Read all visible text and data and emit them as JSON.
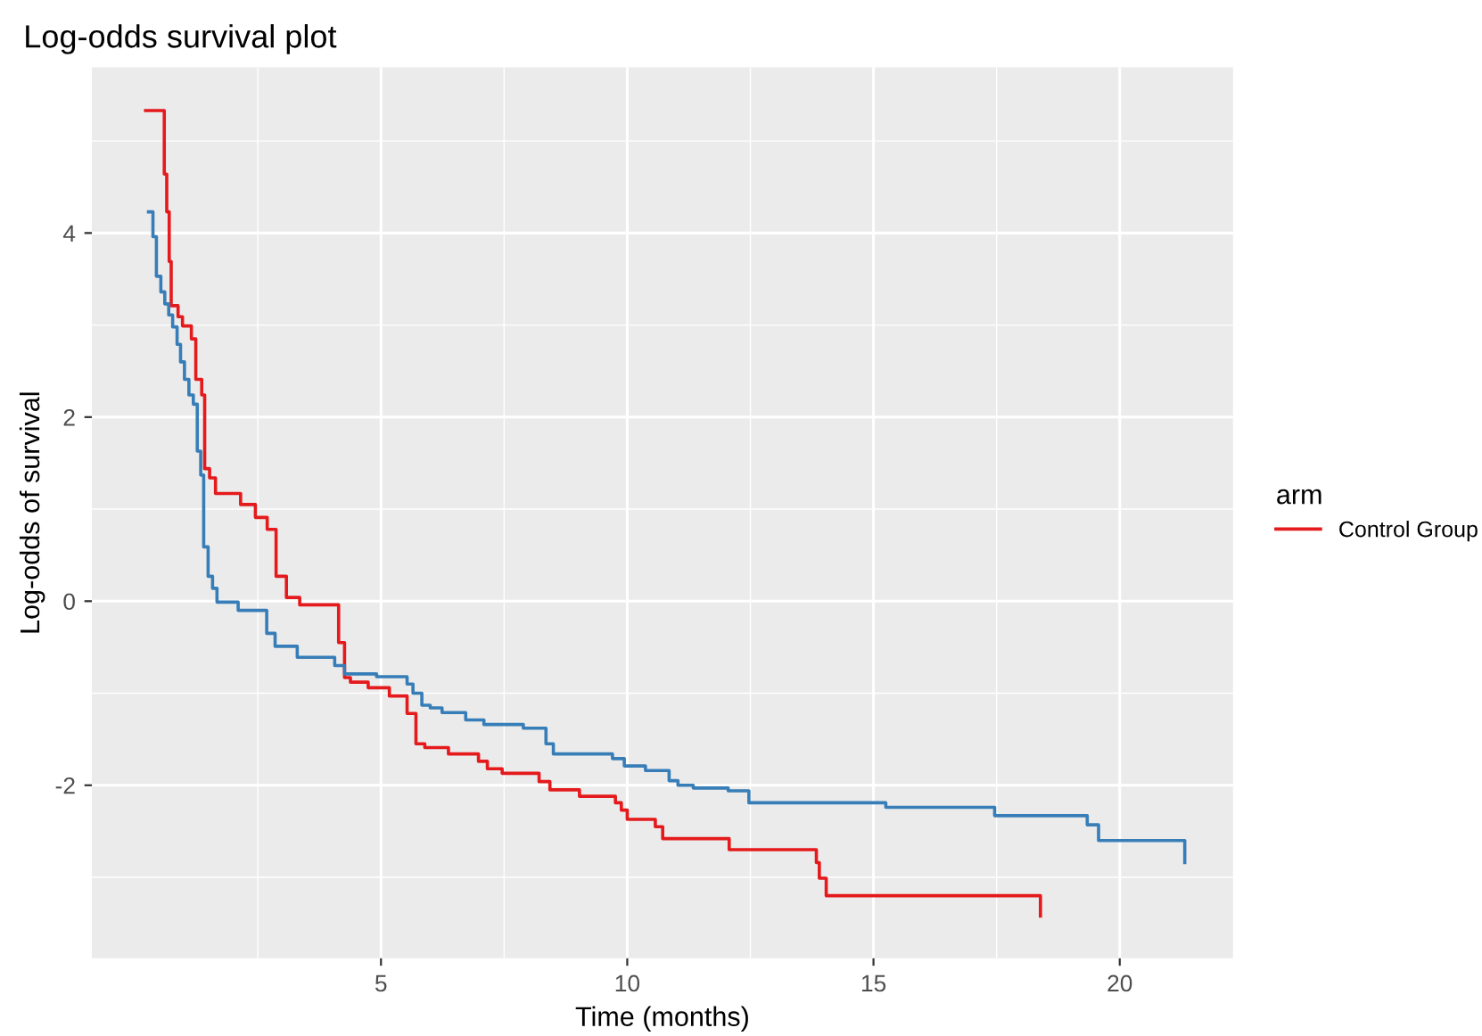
{
  "chart_data": {
    "type": "step",
    "title": "Log-odds survival plot",
    "xlabel": "Time (months)",
    "ylabel": "Log-odds of survival",
    "legend_title": "arm",
    "legend": "right",
    "grid": true,
    "xlim": [
      -0.87,
      22.3
    ],
    "xticks": [
      5,
      10,
      15,
      20
    ],
    "ylim": [
      -3.88,
      5.8
    ],
    "yticks": [
      -2,
      0,
      2,
      4
    ],
    "series": [
      {
        "name": "Control Group",
        "color": "#e41a1c",
        "x": [
          0.22,
          0.6,
          0.65,
          0.7,
          0.74,
          0.88,
          0.97,
          1.15,
          1.24,
          1.36,
          1.42,
          1.52,
          1.64,
          2.15,
          2.45,
          2.69,
          2.87,
          3.08,
          3.35,
          4.14,
          4.26,
          4.38,
          4.74,
          5.17,
          5.53,
          5.71,
          5.89,
          6.37,
          6.98,
          7.16,
          7.46,
          8.21,
          8.43,
          9.03,
          9.76,
          9.88,
          10.0,
          10.57,
          10.72,
          12.07,
          13.84,
          13.9,
          14.04,
          18.39,
          18.39
        ],
        "values": [
          5.33,
          4.64,
          4.23,
          3.69,
          3.21,
          3.09,
          2.99,
          2.85,
          2.41,
          2.24,
          1.44,
          1.34,
          1.17,
          1.05,
          0.91,
          0.78,
          0.27,
          0.04,
          -0.04,
          -0.45,
          -0.83,
          -0.88,
          -0.94,
          -1.03,
          -1.22,
          -1.55,
          -1.59,
          -1.66,
          -1.74,
          -1.82,
          -1.87,
          -1.96,
          -2.05,
          -2.12,
          -2.19,
          -2.27,
          -2.37,
          -2.45,
          -2.58,
          -2.7,
          -2.84,
          -3.01,
          -3.2,
          -3.2,
          -3.42
        ]
      },
      {
        "color": "#377eb8",
        "x": [
          0.28,
          0.37,
          0.44,
          0.53,
          0.61,
          0.69,
          0.77,
          0.86,
          0.93,
          1.01,
          1.1,
          1.19,
          1.27,
          1.34,
          1.4,
          1.49,
          1.58,
          1.67,
          2.1,
          2.68,
          2.85,
          3.3,
          4.06,
          4.26,
          4.91,
          5.53,
          5.65,
          5.83,
          6.0,
          6.24,
          6.72,
          7.09,
          7.89,
          8.35,
          8.5,
          9.7,
          9.94,
          10.37,
          10.85,
          11.03,
          11.34,
          12.05,
          12.47,
          15.25,
          17.46,
          19.34,
          19.57,
          21.32,
          21.32
        ],
        "values": [
          4.23,
          3.96,
          3.53,
          3.36,
          3.23,
          3.11,
          2.98,
          2.79,
          2.6,
          2.41,
          2.24,
          2.14,
          1.63,
          1.37,
          0.59,
          0.27,
          0.14,
          -0.01,
          -0.1,
          -0.35,
          -0.49,
          -0.61,
          -0.7,
          -0.79,
          -0.82,
          -0.9,
          -1.0,
          -1.13,
          -1.16,
          -1.21,
          -1.29,
          -1.34,
          -1.38,
          -1.55,
          -1.66,
          -1.71,
          -1.79,
          -1.84,
          -1.95,
          -2.0,
          -2.03,
          -2.06,
          -2.19,
          -2.24,
          -2.33,
          -2.43,
          -2.6,
          -2.6,
          -2.84
        ]
      }
    ]
  }
}
